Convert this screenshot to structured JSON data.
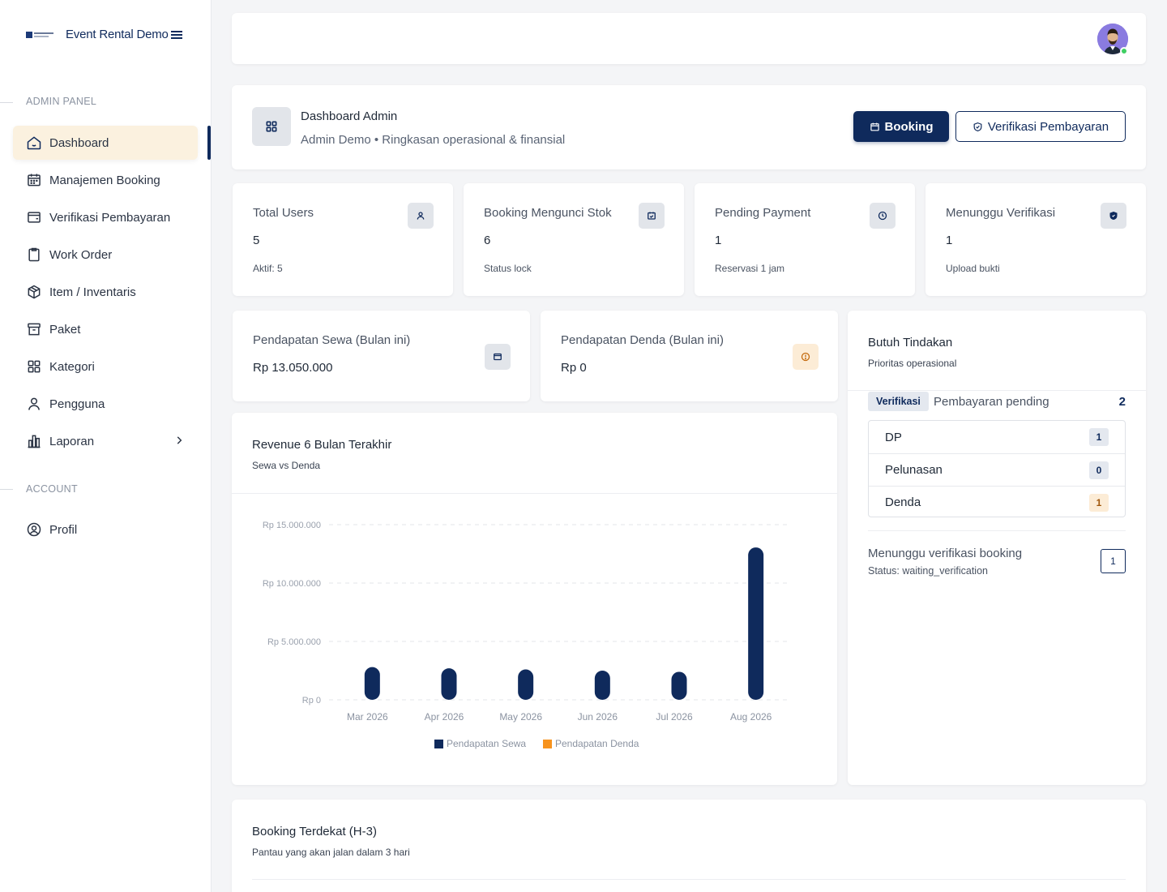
{
  "sidebar": {
    "brand_name": "Event Rental Demo",
    "section_admin": "ADMIN PANEL",
    "section_account": "ACCOUNT",
    "items": [
      {
        "label": "Dashboard",
        "icon": "home-icon",
        "active": true
      },
      {
        "label": "Manajemen Booking",
        "icon": "calendar-icon"
      },
      {
        "label": "Verifikasi Pembayaran",
        "icon": "wallet-icon"
      },
      {
        "label": "Work Order",
        "icon": "clipboard-icon"
      },
      {
        "label": "Item / Inventaris",
        "icon": "box-icon"
      },
      {
        "label": "Paket",
        "icon": "archive-icon"
      },
      {
        "label": "Kategori",
        "icon": "grid-icon"
      },
      {
        "label": "Pengguna",
        "icon": "user-icon"
      },
      {
        "label": "Laporan",
        "icon": "bar-chart-icon"
      }
    ],
    "account_items": [
      {
        "label": "Profil",
        "icon": "user-circle-icon"
      }
    ],
    "accent": "#0f2a5c",
    "active_bg": "#fbf1df"
  },
  "header": {
    "title": "Dashboard Admin",
    "subtitle": "Admin Demo • Ringkasan operasional & finansial",
    "booking_button": "Booking",
    "verify_button": "Verifikasi Pembayaran"
  },
  "stats": [
    {
      "title": "Total Users",
      "value": "5",
      "sub": "Aktif: 5",
      "icon": "user-icon"
    },
    {
      "title": "Booking Mengunci Stok",
      "value": "6",
      "sub": "Status lock",
      "icon": "calendar-check-icon"
    },
    {
      "title": "Pending Payment",
      "value": "1",
      "sub": "Reservasi 1 jam",
      "icon": "clock-icon"
    },
    {
      "title": "Menunggu Verifikasi",
      "value": "1",
      "sub": "Upload bukti",
      "icon": "shield-icon"
    }
  ],
  "revenue": [
    {
      "title": "Pendapatan Sewa (Bulan ini)",
      "value": "Rp 13.050.000",
      "icon": "wallet-icon"
    },
    {
      "title": "Pendapatan Denda (Bulan ini)",
      "value": "Rp 0",
      "icon": "alert-circle-icon"
    }
  ],
  "chart_card": {
    "title": "Revenue 6 Bulan Terakhir",
    "subtitle": "Sewa vs Denda"
  },
  "chart_data": {
    "type": "bar",
    "categories": [
      "Mar 2026",
      "Apr 2026",
      "May 2026",
      "Jun 2026",
      "Jul 2026",
      "Aug 2026"
    ],
    "series": [
      {
        "name": "Pendapatan Sewa",
        "color": "#0f2a5c",
        "values": [
          2800000,
          2700000,
          2600000,
          2500000,
          2400000,
          13050000
        ]
      },
      {
        "name": "Pendapatan Denda",
        "color": "#f7931e",
        "values": [
          0,
          0,
          0,
          0,
          0,
          0
        ]
      }
    ],
    "y_ticks": [
      "Rp 0",
      "Rp 5.000.000",
      "Rp 10.000.000",
      "Rp 15.000.000"
    ],
    "ylim": [
      0,
      15000000
    ],
    "grid": true,
    "legend_position": "bottom"
  },
  "actions": {
    "title": "Butuh Tindakan",
    "subtitle": "Prioritas operasional",
    "pill": "Verifikasi",
    "pill_text": "Pembayaran pending",
    "pill_count": "2",
    "rows": [
      {
        "label": "DP",
        "count": "1",
        "tone": "blue"
      },
      {
        "label": "Pelunasan",
        "count": "0",
        "tone": "blue"
      },
      {
        "label": "Denda",
        "count": "1",
        "tone": "orange"
      }
    ],
    "wait_title": "Menunggu verifikasi booking",
    "wait_sub": "Status: waiting_verification",
    "wait_count": "1"
  },
  "booking": {
    "title": "Booking Terdekat (H-3)",
    "subtitle": "Pantau yang akan jalan dalam 3 hari"
  }
}
